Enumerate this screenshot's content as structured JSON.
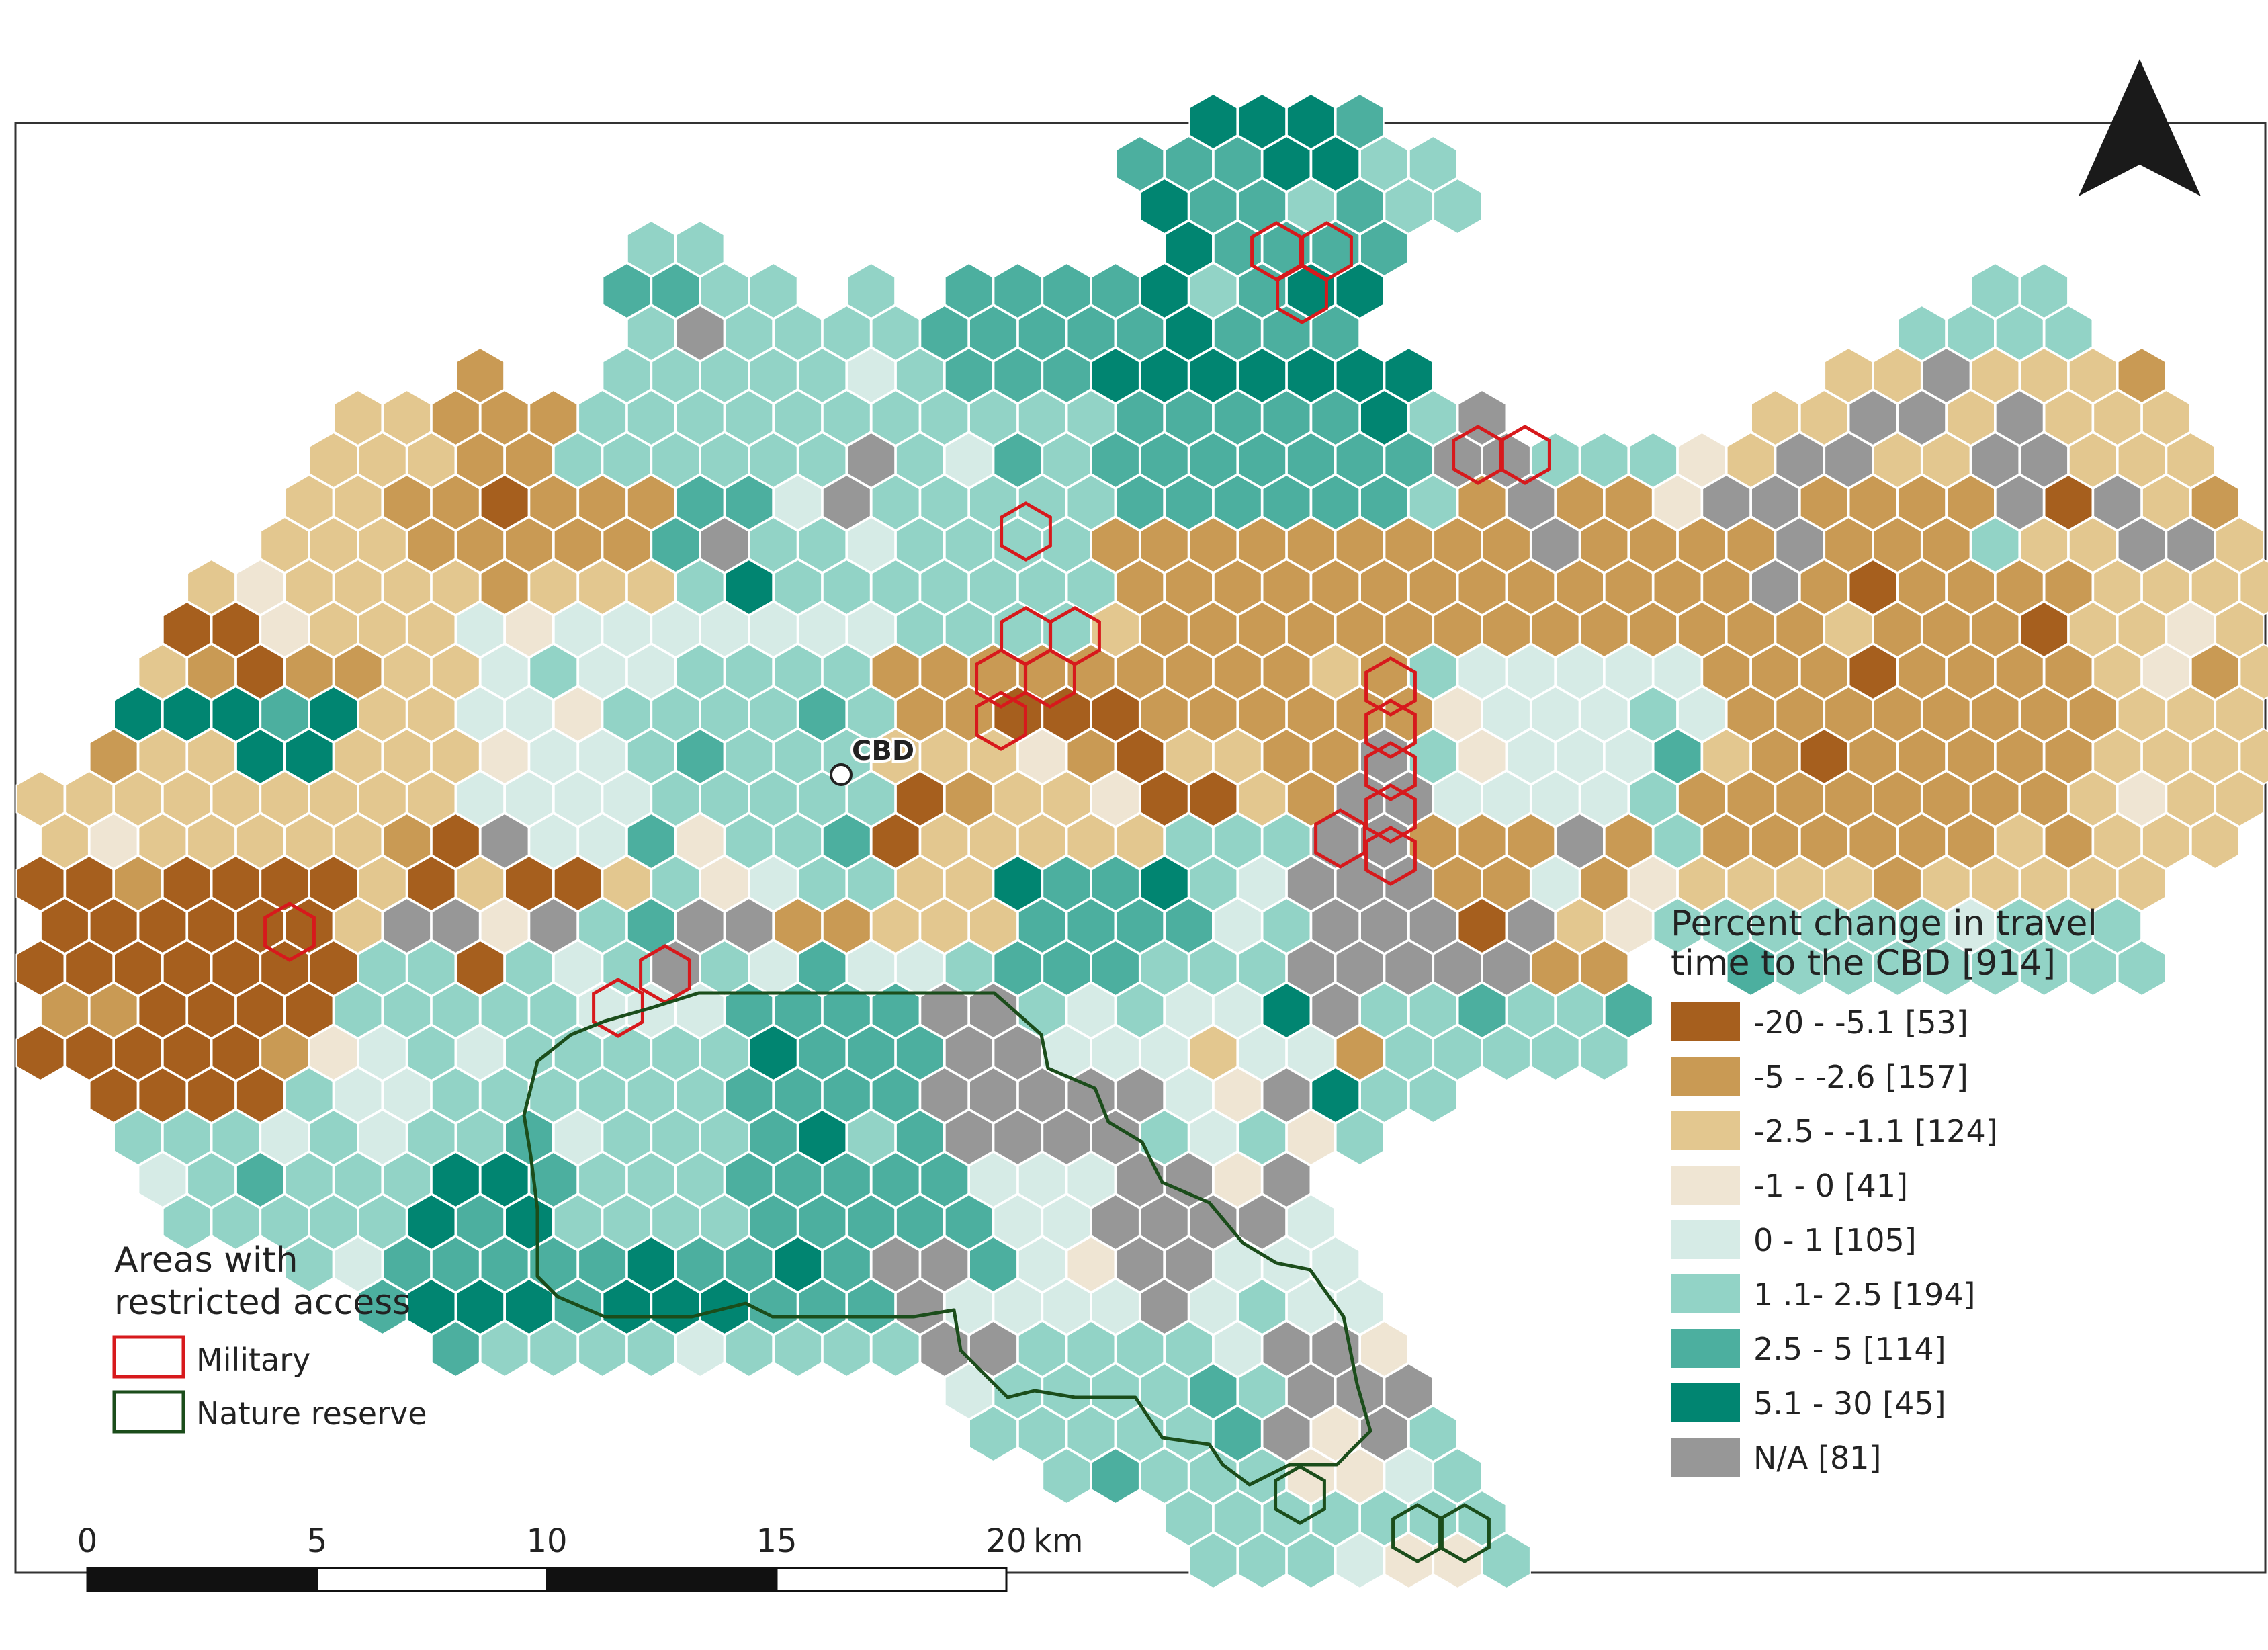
{
  "map": {
    "cbd_label": "CBD",
    "colors": {
      "brown_dark": "#a65f1e",
      "brown": "#c99a54",
      "tan": "#e3c78f",
      "beige": "#efe5d3",
      "mint_light": "#d6ebe6",
      "mint": "#92d3c6",
      "teal": "#4caf9f",
      "teal_dark": "#018571",
      "na_gray": "#979797",
      "military_red": "#d7191c",
      "reserve_green": "#1b4d1b",
      "north_arrow": "#1a1a1a",
      "frame": "#333333"
    }
  },
  "legend": {
    "title_line1": "Percent change in travel",
    "title_line2": "time to the CBD [914]",
    "items": [
      {
        "label": "-20 - -5.1 [53]",
        "color": "#a65f1e"
      },
      {
        "label": "-5 - -2.6 [157]",
        "color": "#c99a54"
      },
      {
        "label": "-2.5 - -1.1 [124]",
        "color": "#e3c78f"
      },
      {
        "label": "-1 - 0 [41]",
        "color": "#efe5d3"
      },
      {
        "label": "0 - 1 [105]",
        "color": "#d6ebe6"
      },
      {
        "label": "1 .1- 2.5 [194]",
        "color": "#92d3c6"
      },
      {
        "label": "2.5 - 5 [114]",
        "color": "#4caf9f"
      },
      {
        "label": "5.1 - 30 [45]",
        "color": "#018571"
      },
      {
        "label": "N/A [81]",
        "color": "#979797"
      }
    ]
  },
  "restricted": {
    "title_line1": "Areas with",
    "title_line2": "restricted access",
    "military_label": "Military",
    "reserve_label": "Nature reserve"
  },
  "scalebar": {
    "ticks": [
      "0",
      "5",
      "10",
      "15",
      "20"
    ],
    "unit": "km"
  }
}
